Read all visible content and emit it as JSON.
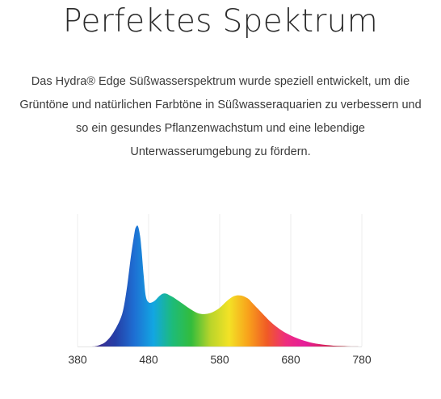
{
  "title": "Perfektes Spektrum",
  "description": {
    "lines": [
      "Das Hydra® Edge Süßwasserspektrum wurde speziell entwickelt, um die",
      "Grüntöne und natürlichen Farbtöne in Süßwasseraquarien zu verbessern und",
      "so ein gesundes Pflanzenwachstum und eine lebendige",
      "Unterwasserumgebung zu fördern."
    ]
  },
  "chart_data": {
    "type": "area",
    "title": "",
    "xlabel": "",
    "ylabel": "",
    "xlim": [
      380,
      780
    ],
    "ylim": [
      0,
      1
    ],
    "xticks": [
      "380",
      "480",
      "580",
      "680",
      "780"
    ],
    "tick_values": [
      380,
      480,
      580,
      680,
      780
    ],
    "grid": false,
    "legend": "none",
    "x": [
      380,
      400,
      410,
      420,
      430,
      440,
      445,
      450,
      455,
      460,
      462,
      465,
      468,
      470,
      473,
      476,
      480,
      485,
      490,
      495,
      500,
      505,
      510,
      515,
      520,
      530,
      540,
      550,
      560,
      570,
      580,
      590,
      600,
      610,
      620,
      625,
      630,
      640,
      650,
      660,
      670,
      680,
      690,
      700,
      710,
      720,
      730,
      740,
      750,
      760,
      770,
      780
    ],
    "values": [
      0.0,
      0.0,
      0.01,
      0.04,
      0.11,
      0.22,
      0.32,
      0.5,
      0.73,
      0.92,
      0.97,
      0.98,
      0.9,
      0.79,
      0.58,
      0.41,
      0.36,
      0.36,
      0.38,
      0.41,
      0.43,
      0.43,
      0.415,
      0.4,
      0.38,
      0.34,
      0.3,
      0.27,
      0.265,
      0.28,
      0.315,
      0.37,
      0.41,
      0.415,
      0.39,
      0.36,
      0.33,
      0.27,
      0.21,
      0.16,
      0.12,
      0.09,
      0.065,
      0.045,
      0.03,
      0.02,
      0.012,
      0.007,
      0.004,
      0.002,
      0.001,
      0.0
    ],
    "colors": [
      "#5a1f7a",
      "#3e2d8f",
      "#253ea6",
      "#1e6fd3",
      "#12a6e2",
      "#1dbb7a",
      "#33bc3c",
      "#b9d42a",
      "#f3e226",
      "#f8a21b",
      "#f05a26",
      "#ee2d7e",
      "#e51d9a",
      "#d8205c",
      "#b01c2a",
      "#7a1a20"
    ]
  }
}
